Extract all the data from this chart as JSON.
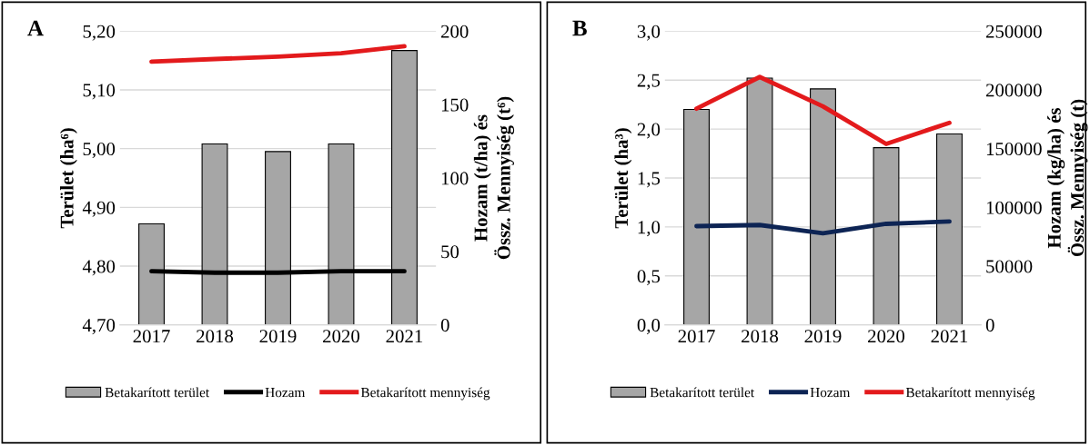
{
  "chart_data": [
    {
      "type": "bar",
      "annotations": [
        "A"
      ],
      "categories": [
        "2017",
        "2018",
        "2019",
        "2020",
        "2021"
      ],
      "ylabel": "Terület (ha⁶)",
      "y2label": "Hozam (t/ha) és\nÖssz. Mennyiség (t⁶)",
      "series": [
        {
          "name": "Betakarított terület",
          "color": "#a6a6a6",
          "values": [
            4.872,
            5.008,
            4.995,
            5.008,
            5.167
          ]
        },
        {
          "name": "Hozam",
          "type": "line",
          "axis": "y2",
          "color": "#000000",
          "values": [
            36.5,
            35.5,
            35.5,
            36.5,
            36.5
          ]
        },
        {
          "name": "Betakarított mennyiség",
          "type": "line",
          "axis": "y2",
          "color": "#e31a1c",
          "values": [
            179.2,
            181,
            182.6,
            185,
            189.7
          ]
        }
      ],
      "ylim": [
        4.7,
        5.2
      ],
      "yticks": [
        {
          "value": 4.7,
          "label": "4,70"
        },
        {
          "value": 4.8,
          "label": "4,80"
        },
        {
          "value": 4.9,
          "label": "4,90"
        },
        {
          "value": 5.0,
          "label": "5,00"
        },
        {
          "value": 5.1,
          "label": "5,10"
        },
        {
          "value": 5.2,
          "label": "5,20"
        }
      ],
      "y2lim": [
        0,
        200
      ],
      "y2ticks": [
        0,
        50,
        100,
        150,
        200
      ],
      "grid": "y",
      "legend": "bottom"
    },
    {
      "type": "bar",
      "annotations": [
        "B"
      ],
      "categories": [
        "2017",
        "2018",
        "2019",
        "2020",
        "2021"
      ],
      "ylabel": "Terület (ha³)",
      "y2label": "Hozam (kg/ha) és\nÖssz. Mennyiség (t)",
      "series": [
        {
          "name": "Betakarított terület",
          "color": "#a6a6a6",
          "values": [
            2.2,
            2.52,
            2.41,
            1.81,
            1.95
          ]
        },
        {
          "name": "Hozam",
          "type": "line",
          "axis": "y2",
          "color": "#0d2454",
          "values": [
            84000,
            85000,
            78000,
            86000,
            88000
          ]
        },
        {
          "name": "Betakarított mennyiség",
          "type": "line",
          "axis": "y2",
          "color": "#e31a1c",
          "values": [
            184000,
            211000,
            186000,
            154000,
            172000
          ]
        }
      ],
      "ylim": [
        0,
        3.0
      ],
      "yticks": [
        {
          "value": 0,
          "label": "0,0"
        },
        {
          "value": 0.5,
          "label": "0,5"
        },
        {
          "value": 1.0,
          "label": "1,0"
        },
        {
          "value": 1.5,
          "label": "1,5"
        },
        {
          "value": 2.0,
          "label": "2,0"
        },
        {
          "value": 2.5,
          "label": "2,5"
        },
        {
          "value": 3.0,
          "label": "3,0"
        }
      ],
      "y2lim": [
        0,
        250000
      ],
      "y2ticks": [
        0,
        50000,
        100000,
        150000,
        200000,
        250000
      ],
      "grid": "y",
      "legend": "bottom"
    }
  ]
}
